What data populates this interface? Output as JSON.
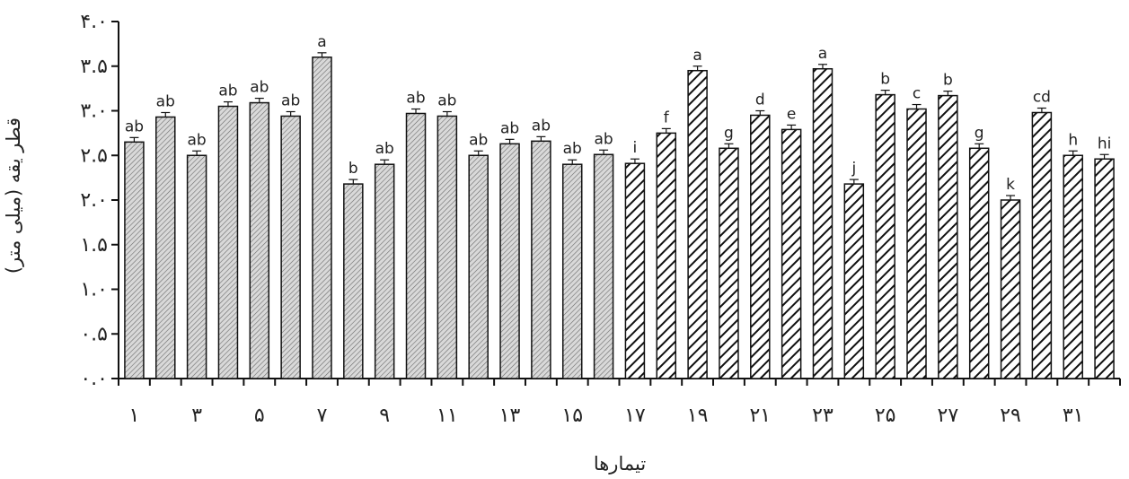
{
  "chart_data": {
    "type": "bar",
    "title": "",
    "xlabel": "تیمارها",
    "ylabel": "قطر یقه (میلی متر)",
    "ylim": [
      0,
      4
    ],
    "yticks": [
      {
        "value": 0.0,
        "label": "۰.۰"
      },
      {
        "value": 0.5,
        "label": "۰.۵"
      },
      {
        "value": 1.0,
        "label": "۱.۰"
      },
      {
        "value": 1.5,
        "label": "۱.۵"
      },
      {
        "value": 2.0,
        "label": "۲.۰"
      },
      {
        "value": 2.5,
        "label": "۲.۵"
      },
      {
        "value": 3.0,
        "label": "۳.۰"
      },
      {
        "value": 3.5,
        "label": "۳.۵"
      },
      {
        "value": 4.0,
        "label": "۴.۰"
      }
    ],
    "categories": [
      "۱",
      "۲",
      "۳",
      "۴",
      "۵",
      "۶",
      "۷",
      "۸",
      "۹",
      "۱۰",
      "۱۱",
      "۱۲",
      "۱۳",
      "۱۴",
      "۱۵",
      "۱۶",
      "۱۷",
      "۱۸",
      "۱۹",
      "۲۰",
      "۲۱",
      "۲۲",
      "۲۳",
      "۲۴",
      "۲۵",
      "۲۶",
      "۲۷",
      "۲۸",
      "۲۹",
      "۳۰",
      "۳۱",
      "۳۲"
    ],
    "xtick_labels_shown": [
      "۱",
      "",
      "۳",
      "",
      "۵",
      "",
      "۷",
      "",
      "۹",
      "",
      "۱۱",
      "",
      "۱۳",
      "",
      "۱۵",
      "",
      "۱۷",
      "",
      "۱۹",
      "",
      "۲۱",
      "",
      "۲۳",
      "",
      "۲۵",
      "",
      "۲۷",
      "",
      "۲۹",
      "",
      "۳۱",
      ""
    ],
    "values": [
      2.65,
      2.93,
      2.5,
      3.05,
      3.09,
      2.94,
      3.6,
      2.18,
      2.4,
      2.97,
      2.94,
      2.5,
      2.63,
      2.66,
      2.4,
      2.51,
      2.41,
      2.75,
      3.45,
      2.58,
      2.95,
      2.79,
      3.47,
      2.18,
      3.18,
      3.02,
      3.17,
      2.58,
      2.0,
      2.98,
      2.5,
      2.46
    ],
    "errors": [
      0.05,
      0.05,
      0.05,
      0.05,
      0.05,
      0.05,
      0.05,
      0.05,
      0.05,
      0.05,
      0.05,
      0.05,
      0.05,
      0.05,
      0.05,
      0.05,
      0.05,
      0.05,
      0.05,
      0.05,
      0.05,
      0.05,
      0.05,
      0.05,
      0.05,
      0.05,
      0.05,
      0.05,
      0.05,
      0.05,
      0.05,
      0.05
    ],
    "significance_labels": [
      "ab",
      "ab",
      "ab",
      "ab",
      "ab",
      "ab",
      "a",
      "b",
      "ab",
      "ab",
      "ab",
      "ab",
      "ab",
      "ab",
      "ab",
      "ab",
      "i",
      "f",
      "a",
      "g",
      "d",
      "e",
      "a",
      "j",
      "b",
      "c",
      "b",
      "g",
      "k",
      "cd",
      "h",
      "hi"
    ],
    "patterns": [
      "fine",
      "fine",
      "fine",
      "fine",
      "fine",
      "fine",
      "fine",
      "fine",
      "fine",
      "fine",
      "fine",
      "fine",
      "fine",
      "fine",
      "fine",
      "fine",
      "bold",
      "bold",
      "bold",
      "bold",
      "bold",
      "bold",
      "bold",
      "bold",
      "bold",
      "bold",
      "bold",
      "bold",
      "bold",
      "bold",
      "bold",
      "bold"
    ],
    "bar_stroke": "#111111",
    "grid": false,
    "legend": "none"
  }
}
